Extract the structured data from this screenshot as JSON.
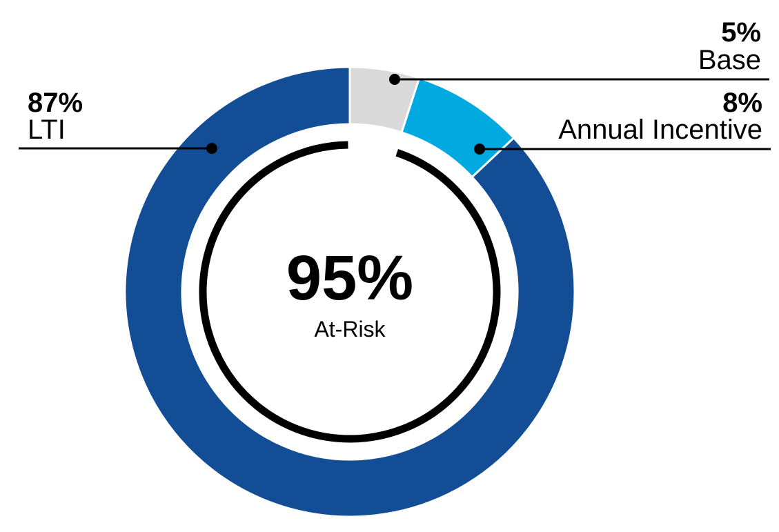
{
  "chart_data": {
    "type": "donut",
    "categories": [
      "Base",
      "Annual Incentive",
      "LTI"
    ],
    "values": [
      5,
      8,
      87
    ],
    "value_labels": [
      "5%",
      "8%",
      "87%"
    ],
    "colors": [
      "#d9d9d9",
      "#00a9e0",
      "#124d96"
    ],
    "center_value": 95,
    "center_label": "95%",
    "center_text": "At-Risk"
  }
}
